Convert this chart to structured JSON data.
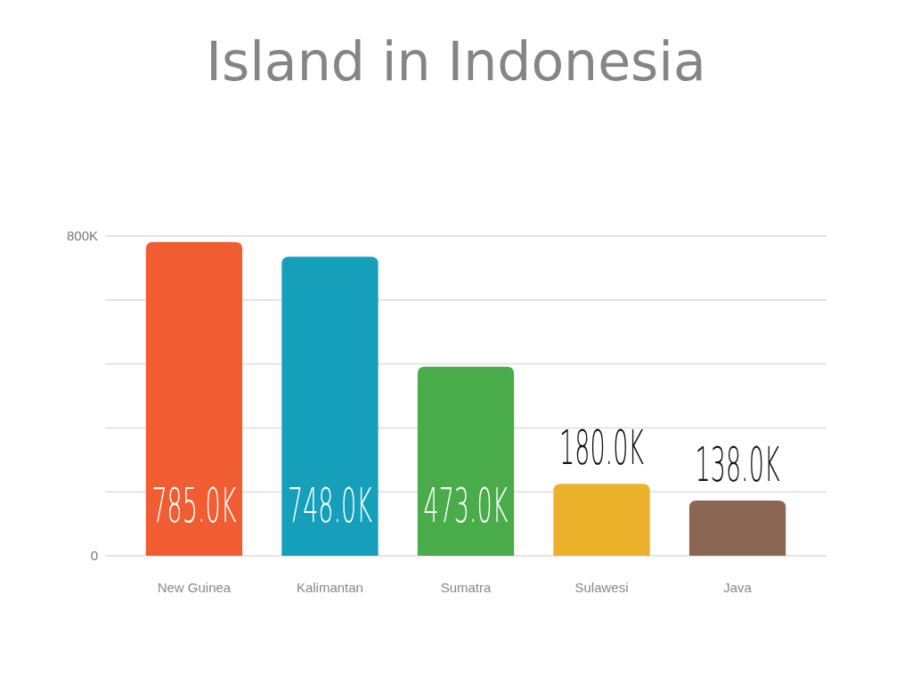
{
  "chart_data": {
    "type": "bar",
    "title": "Island in Indonesia",
    "categories": [
      "New Guinea",
      "Kalimantan",
      "Sumatra",
      "Sulawesi",
      "Java"
    ],
    "values": [
      785000,
      748000,
      473000,
      180000,
      138000
    ],
    "colors": [
      "#f05d33",
      "#159fba",
      "#4aab4b",
      "#ebb12b",
      "#8b6753"
    ],
    "value_labels": [
      "785.0K",
      "748.0K",
      "473.0K",
      "180.0K",
      "138.0K"
    ],
    "ylim": [
      0,
      800000
    ],
    "yticks": [
      0,
      {
        "value": 160000,
        "label": null
      },
      {
        "value": 320000,
        "label": null
      },
      {
        "value": 480000,
        "label": null
      },
      {
        "value": 640000,
        "label": null
      },
      {
        "value": 800000,
        "label": "800K"
      }
    ],
    "grid": "y"
  }
}
